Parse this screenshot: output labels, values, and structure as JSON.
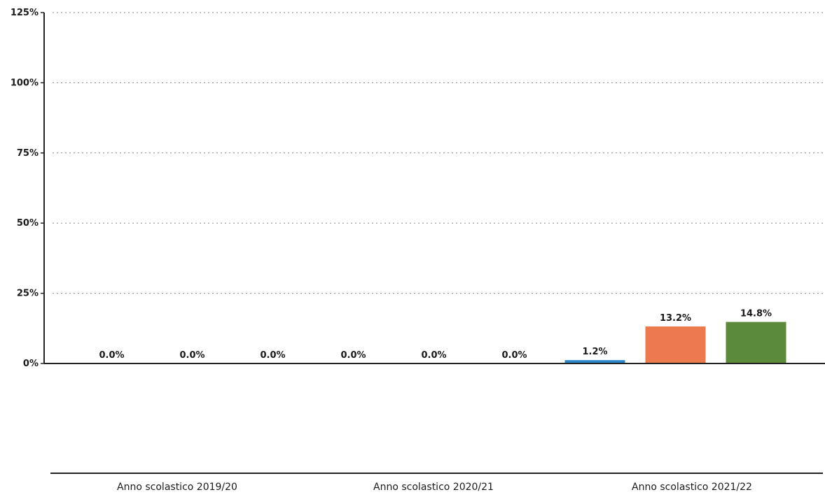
{
  "chart_data": {
    "type": "bar",
    "categories": [
      "Anno scolastico 2019/20",
      "Anno scolastico 2020/21",
      "Anno scolastico 2021/22"
    ],
    "series": [
      {
        "values": [
          0.0,
          0.0,
          1.2
        ],
        "color": "#2a86c8"
      },
      {
        "values": [
          0.0,
          0.0,
          13.2
        ],
        "color": "#ec7a4e"
      },
      {
        "values": [
          0.0,
          0.0,
          14.8
        ],
        "color": "#5b8a3a"
      }
    ],
    "data_labels": [
      [
        "0.0%",
        "0.0%",
        "1.2%"
      ],
      [
        "0.0%",
        "0.0%",
        "13.2%"
      ],
      [
        "0.0%",
        "0.0%",
        "14.8%"
      ]
    ],
    "yticks": [
      0,
      25,
      50,
      75,
      100,
      125
    ],
    "ytick_labels": [
      "0%",
      "25%",
      "50%",
      "75%",
      "100%",
      "125%"
    ],
    "ylim": [
      0,
      125
    ],
    "grid": true,
    "legend": "none"
  }
}
